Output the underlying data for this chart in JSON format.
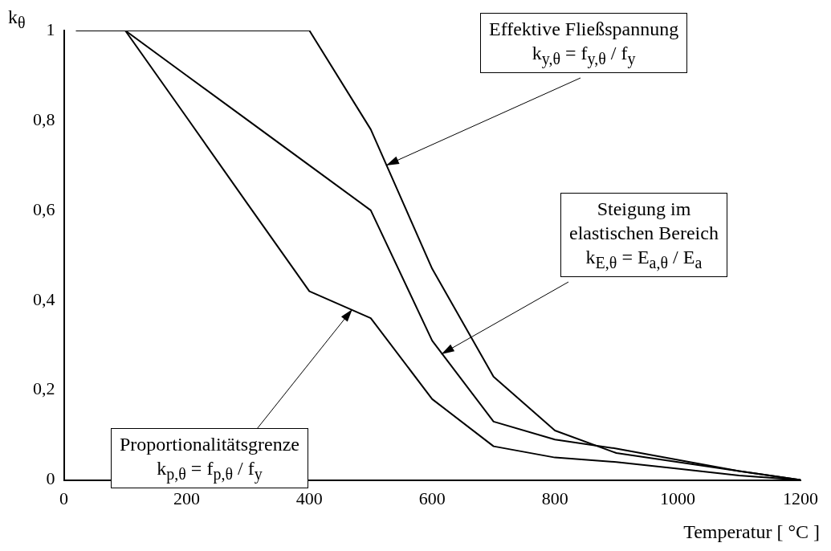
{
  "chart_data": {
    "type": "line",
    "xlabel": "Temperatur [ °C ]",
    "ylabel": "k$_{θ}$",
    "x": [
      20,
      100,
      200,
      300,
      400,
      500,
      600,
      700,
      800,
      900,
      1000,
      1100,
      1200
    ],
    "series": [
      {
        "color": "#000000",
        "values": [
          1,
          1,
          1,
          1,
          1,
          0.78,
          0.47,
          0.23,
          0.11,
          0.06,
          0.04,
          0.02,
          0
        ]
      },
      {
        "color": "#000000",
        "values": [
          1,
          1,
          0.9,
          0.8,
          0.7,
          0.6,
          0.31,
          0.13,
          0.09,
          0.07,
          0.045,
          0.02,
          0
        ]
      },
      {
        "color": "#000000",
        "values": [
          1,
          1,
          0.807,
          0.613,
          0.42,
          0.36,
          0.18,
          0.075,
          0.05,
          0.04,
          0.025,
          0.01,
          0
        ]
      }
    ],
    "xlim": [
      0,
      1200
    ],
    "xticks": [
      0,
      200,
      400,
      600,
      800,
      1000,
      1200
    ],
    "ylim": [
      0,
      1
    ],
    "yticks": [
      0,
      {
        "value": 0.2,
        "label": "0,2"
      },
      {
        "value": 0.4,
        "label": "0,4"
      },
      {
        "value": 0.6,
        "label": "0,6"
      },
      {
        "value": 0.8,
        "label": "0,8"
      },
      1
    ],
    "grid": false,
    "legend": false,
    "marker": "none",
    "line_style": "solid",
    "annotations": [
      {
        "text": "Effektive Fließspannung\nk$_{y,θ}$  =  f$_{y,θ}$ / f$_{y}$",
        "x": 525,
        "y": 0.7
      },
      {
        "text": "Steigung im\nelastischen Bereich\nk$_{E,θ}$  =  E$_{a,θ}$ / E$_{a}$",
        "x": 615,
        "y": 0.28
      },
      {
        "text": "Proportionalitätsgrenze\nk$_{p,θ}$  =  f$_{p,θ}$ / f$_{y}$",
        "x": 470,
        "y": 0.38
      }
    ]
  }
}
